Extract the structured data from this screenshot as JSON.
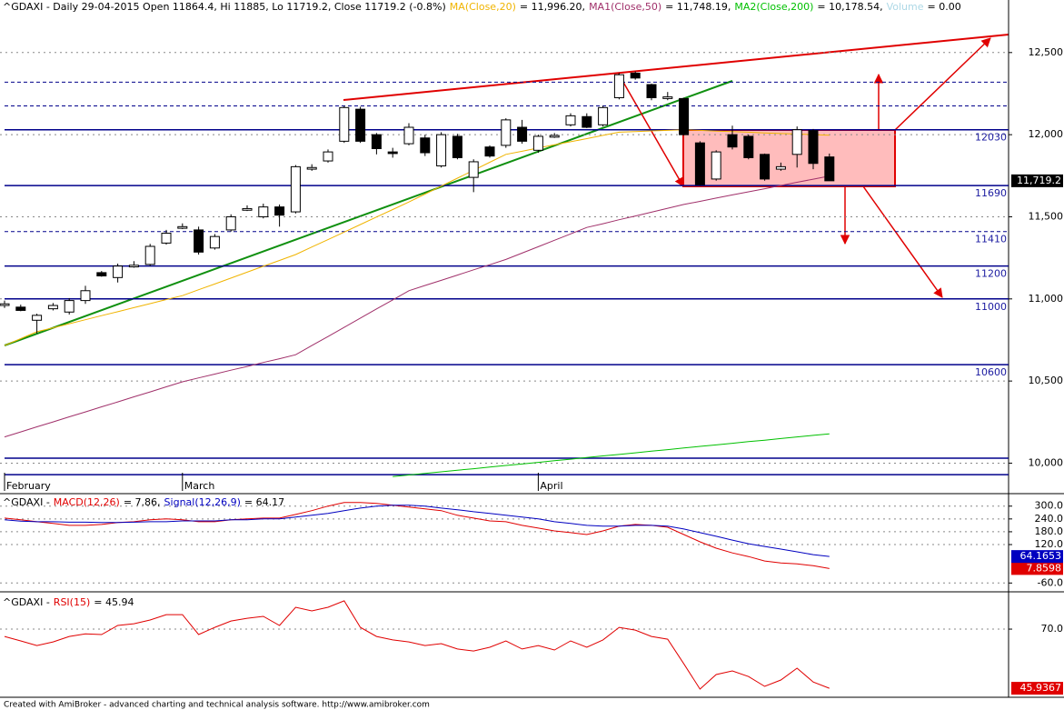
{
  "chart_data": [
    {
      "type": "candlestick",
      "title": "^GDAXI - Daily 29-04-2015 Open 11864.4, Hi 11885, Lo 11719.2, Close 11719.2 (-0.8%)",
      "categories": [
        "February",
        null,
        null,
        null,
        null,
        null,
        null,
        null,
        null,
        null,
        null,
        "March",
        null,
        null,
        null,
        null,
        null,
        null,
        null,
        null,
        null,
        null,
        null,
        null,
        null,
        null,
        null,
        null,
        null,
        null,
        null,
        null,
        null,
        "April",
        null,
        null,
        null,
        null,
        null,
        null,
        null,
        null,
        null,
        null,
        null,
        null,
        null,
        null,
        null,
        null,
        null,
        null
      ],
      "open": [
        10960,
        10950,
        10870,
        10940,
        10920,
        10990,
        11160,
        11130,
        11195,
        11210,
        11340,
        11430,
        11420,
        11310,
        11420,
        11540,
        11500,
        11560,
        11530,
        11790,
        11840,
        11960,
        12155,
        12000,
        11895,
        11945,
        11980,
        11810,
        11990,
        11740,
        11925,
        11935,
        12045,
        11905,
        11985,
        12060,
        12110,
        12060,
        12225,
        12375,
        12305,
        12220,
        12220,
        11950,
        11730,
        12000,
        11990,
        11880,
        11790,
        11880,
        12025,
        11864.4
      ],
      "high": [
        10990,
        10965,
        10910,
        10975,
        11005,
        11080,
        11170,
        11215,
        11230,
        11335,
        11420,
        11460,
        11440,
        11395,
        11515,
        11570,
        11580,
        11575,
        11815,
        11820,
        11910,
        12175,
        12170,
        12010,
        11920,
        12070,
        12000,
        12015,
        12005,
        11850,
        11935,
        12100,
        12090,
        12000,
        12010,
        12130,
        12130,
        12175,
        12375,
        12385,
        12310,
        12260,
        12225,
        11960,
        11905,
        12055,
        12000,
        11885,
        11830,
        12050,
        12035,
        11885
      ],
      "low": [
        10945,
        10925,
        10790,
        10930,
        10905,
        10970,
        11135,
        11100,
        11190,
        11200,
        11330,
        11425,
        11270,
        11300,
        11410,
        11535,
        11490,
        11440,
        11520,
        11780,
        11830,
        11950,
        11950,
        11880,
        11860,
        11935,
        11870,
        11800,
        11850,
        11650,
        11860,
        11920,
        11945,
        11890,
        11980,
        12050,
        12040,
        12050,
        12215,
        12335,
        12210,
        12210,
        11995,
        11690,
        11720,
        11910,
        11850,
        11720,
        11780,
        11800,
        11790,
        11719.2
      ],
      "close": [
        10970,
        10930,
        10900,
        10960,
        10990,
        11050,
        11140,
        11200,
        11205,
        11320,
        11400,
        11440,
        11285,
        11380,
        11500,
        11550,
        11560,
        11510,
        11805,
        11800,
        11895,
        12165,
        11960,
        11915,
        11885,
        12045,
        11890,
        12000,
        11860,
        11835,
        11870,
        12090,
        11960,
        11990,
        11995,
        12115,
        12045,
        12165,
        12365,
        12345,
        12225,
        12230,
        12000,
        11695,
        11895,
        11925,
        11860,
        11730,
        11805,
        12030,
        11825,
        11719.2
      ],
      "up_color": "#ffffff",
      "down_color": "#000000",
      "overlays": [
        {
          "name": "MA(Close,20)",
          "readout": "= 11,996.20,",
          "color": "#f0b400",
          "values": [
            10716,
            10758,
            10800,
            10824,
            10849,
            10873,
            10898,
            10922,
            10947,
            10971,
            10996,
            11020,
            11056,
            11091,
            11127,
            11163,
            11199,
            11234,
            11270,
            11316,
            11361,
            11407,
            11453,
            11499,
            11544,
            11590,
            11638,
            11687,
            11735,
            11783,
            11832,
            11880,
            11899,
            11919,
            11938,
            11957,
            11976,
            11996,
            12015,
            12019,
            12023,
            12026,
            12030,
            12026,
            12022,
            12019,
            12015,
            12011,
            12007,
            12004,
            12000,
            11996.2
          ]
        },
        {
          "name": "MA1(Close,50)",
          "readout": "= 11,748.19,",
          "color": "#a0306a",
          "values": [
            10160,
            10190,
            10221,
            10251,
            10282,
            10312,
            10343,
            10373,
            10404,
            10434,
            10465,
            10495,
            10519,
            10542,
            10566,
            10589,
            10613,
            10636,
            10660,
            10716,
            10771,
            10827,
            10883,
            10939,
            10994,
            11050,
            11082,
            11113,
            11145,
            11177,
            11208,
            11240,
            11279,
            11318,
            11357,
            11396,
            11435,
            11458,
            11482,
            11505,
            11528,
            11552,
            11575,
            11594,
            11614,
            11633,
            11652,
            11671,
            11691,
            11710,
            11729,
            11748.19
          ]
        },
        {
          "name": "MA2(Close,200)",
          "readout": "= 10,178.54,",
          "color": "#00c000",
          "values": [
            null,
            null,
            null,
            null,
            null,
            null,
            null,
            null,
            null,
            null,
            null,
            null,
            null,
            null,
            null,
            null,
            null,
            null,
            null,
            null,
            null,
            null,
            null,
            null,
            9918,
            9928,
            9937,
            9947,
            9957,
            9966,
            9976,
            9986,
            9995,
            10005,
            10015,
            10024,
            10034,
            10044,
            10053,
            10063,
            10073,
            10082,
            10092,
            10102,
            10111,
            10121,
            10131,
            10140,
            10150,
            10160,
            10169,
            10178.54
          ]
        }
      ],
      "volume_legend": {
        "name": "Volume",
        "readout": "= 0.00",
        "color": "#add8e6"
      },
      "last_label": "11,719.2",
      "ylim": [
        9914,
        12820
      ],
      "yticks": [
        {
          "value": 10000,
          "label": "10,000"
        },
        {
          "value": 10500,
          "label": "10,500"
        },
        {
          "value": 11000,
          "label": "11,000"
        },
        {
          "value": 11500,
          "label": "11,500"
        },
        {
          "value": 12000,
          "label": "12,000"
        },
        {
          "value": 12500,
          "label": "12,500"
        }
      ],
      "grid": true,
      "levels": [
        {
          "value": 12320,
          "style": "dashed",
          "labeled": false
        },
        {
          "value": 12175,
          "style": "dashed",
          "labeled": false
        },
        {
          "value": 12030,
          "style": "solid",
          "labeled": true
        },
        {
          "value": 11690,
          "style": "solid",
          "labeled": true
        },
        {
          "value": 11410,
          "style": "dashed",
          "labeled": true
        },
        {
          "value": 11200,
          "style": "solid",
          "labeled": true
        },
        {
          "value": 11000,
          "style": "solid",
          "labeled": true
        },
        {
          "value": 10600,
          "style": "solid",
          "labeled": true
        },
        {
          "value": 10030,
          "style": "solid",
          "labeled": false
        },
        {
          "value": 9930,
          "style": "solid",
          "labeled": false
        }
      ]
    },
    {
      "type": "line",
      "title": "^GDAXI -",
      "series": [
        {
          "name": "MACD(12,26)",
          "readout": "= 7.86,",
          "color": "#e00000",
          "last_label": "7.8598",
          "values": [
            244,
            236,
            227,
            219,
            210,
            210,
            214,
            223,
            227,
            236,
            240,
            236,
            227,
            227,
            236,
            240,
            244,
            244,
            261,
            279,
            300,
            317,
            317,
            313,
            304,
            296,
            287,
            279,
            257,
            244,
            231,
            227,
            210,
            197,
            184,
            176,
            167,
            184,
            206,
            214,
            210,
            201,
            167,
            133,
            103,
            81,
            64,
            43,
            34,
            30,
            21,
            7.8598
          ]
        },
        {
          "name": "Signal(12,26,9)",
          "readout": "= 64.17",
          "color": "#0000c0",
          "last_label": "64.1653",
          "values": [
            236,
            230,
            227,
            227,
            225,
            225,
            223,
            223,
            225,
            227,
            227,
            231,
            231,
            231,
            236,
            236,
            240,
            240,
            249,
            257,
            266,
            279,
            291,
            300,
            304,
            304,
            300,
            291,
            283,
            274,
            266,
            257,
            249,
            240,
            227,
            219,
            210,
            206,
            206,
            210,
            210,
            206,
            193,
            176,
            159,
            141,
            124,
            111,
            99,
            86,
            73,
            64.1653
          ]
        }
      ],
      "ylim": [
        -97,
        350
      ],
      "yticks": [
        {
          "value": -60,
          "label": "-60.0"
        },
        {
          "value": 120,
          "label": "120.0"
        },
        {
          "value": 180,
          "label": "180.0"
        },
        {
          "value": 240,
          "label": "240.0"
        },
        {
          "value": 300,
          "label": "300.0"
        }
      ],
      "grid": true
    },
    {
      "type": "line",
      "title": "^GDAXI -",
      "series": [
        {
          "name": "RSI(15)",
          "readout": "= 45.94",
          "color": "#e00000",
          "last_label": "45.9367",
          "values": [
            67,
            65.2,
            63.3,
            64.8,
            67,
            68.1,
            67.8,
            71.5,
            72.2,
            73.7,
            75.9,
            75.9,
            67.8,
            70.7,
            73.3,
            74.4,
            75.2,
            71.5,
            78.9,
            77.4,
            78.9,
            81.5,
            70.7,
            67,
            65.6,
            64.8,
            63.3,
            64.1,
            61.9,
            61.1,
            62.6,
            65.2,
            61.9,
            63.3,
            61.5,
            65.2,
            62.6,
            65.6,
            70.7,
            69.6,
            67,
            65.9,
            55.9,
            45.6,
            51.5,
            53,
            50.7,
            46.7,
            49.3,
            54.1,
            48.5,
            45.9367
          ]
        }
      ],
      "ylim": [
        41.9,
        83.7
      ],
      "yticks": [
        {
          "value": 70,
          "label": "70.0"
        }
      ],
      "grid": true
    }
  ],
  "footer": "Created with AmiBroker - advanced charting and technical analysis software. http://www.amibroker.com"
}
